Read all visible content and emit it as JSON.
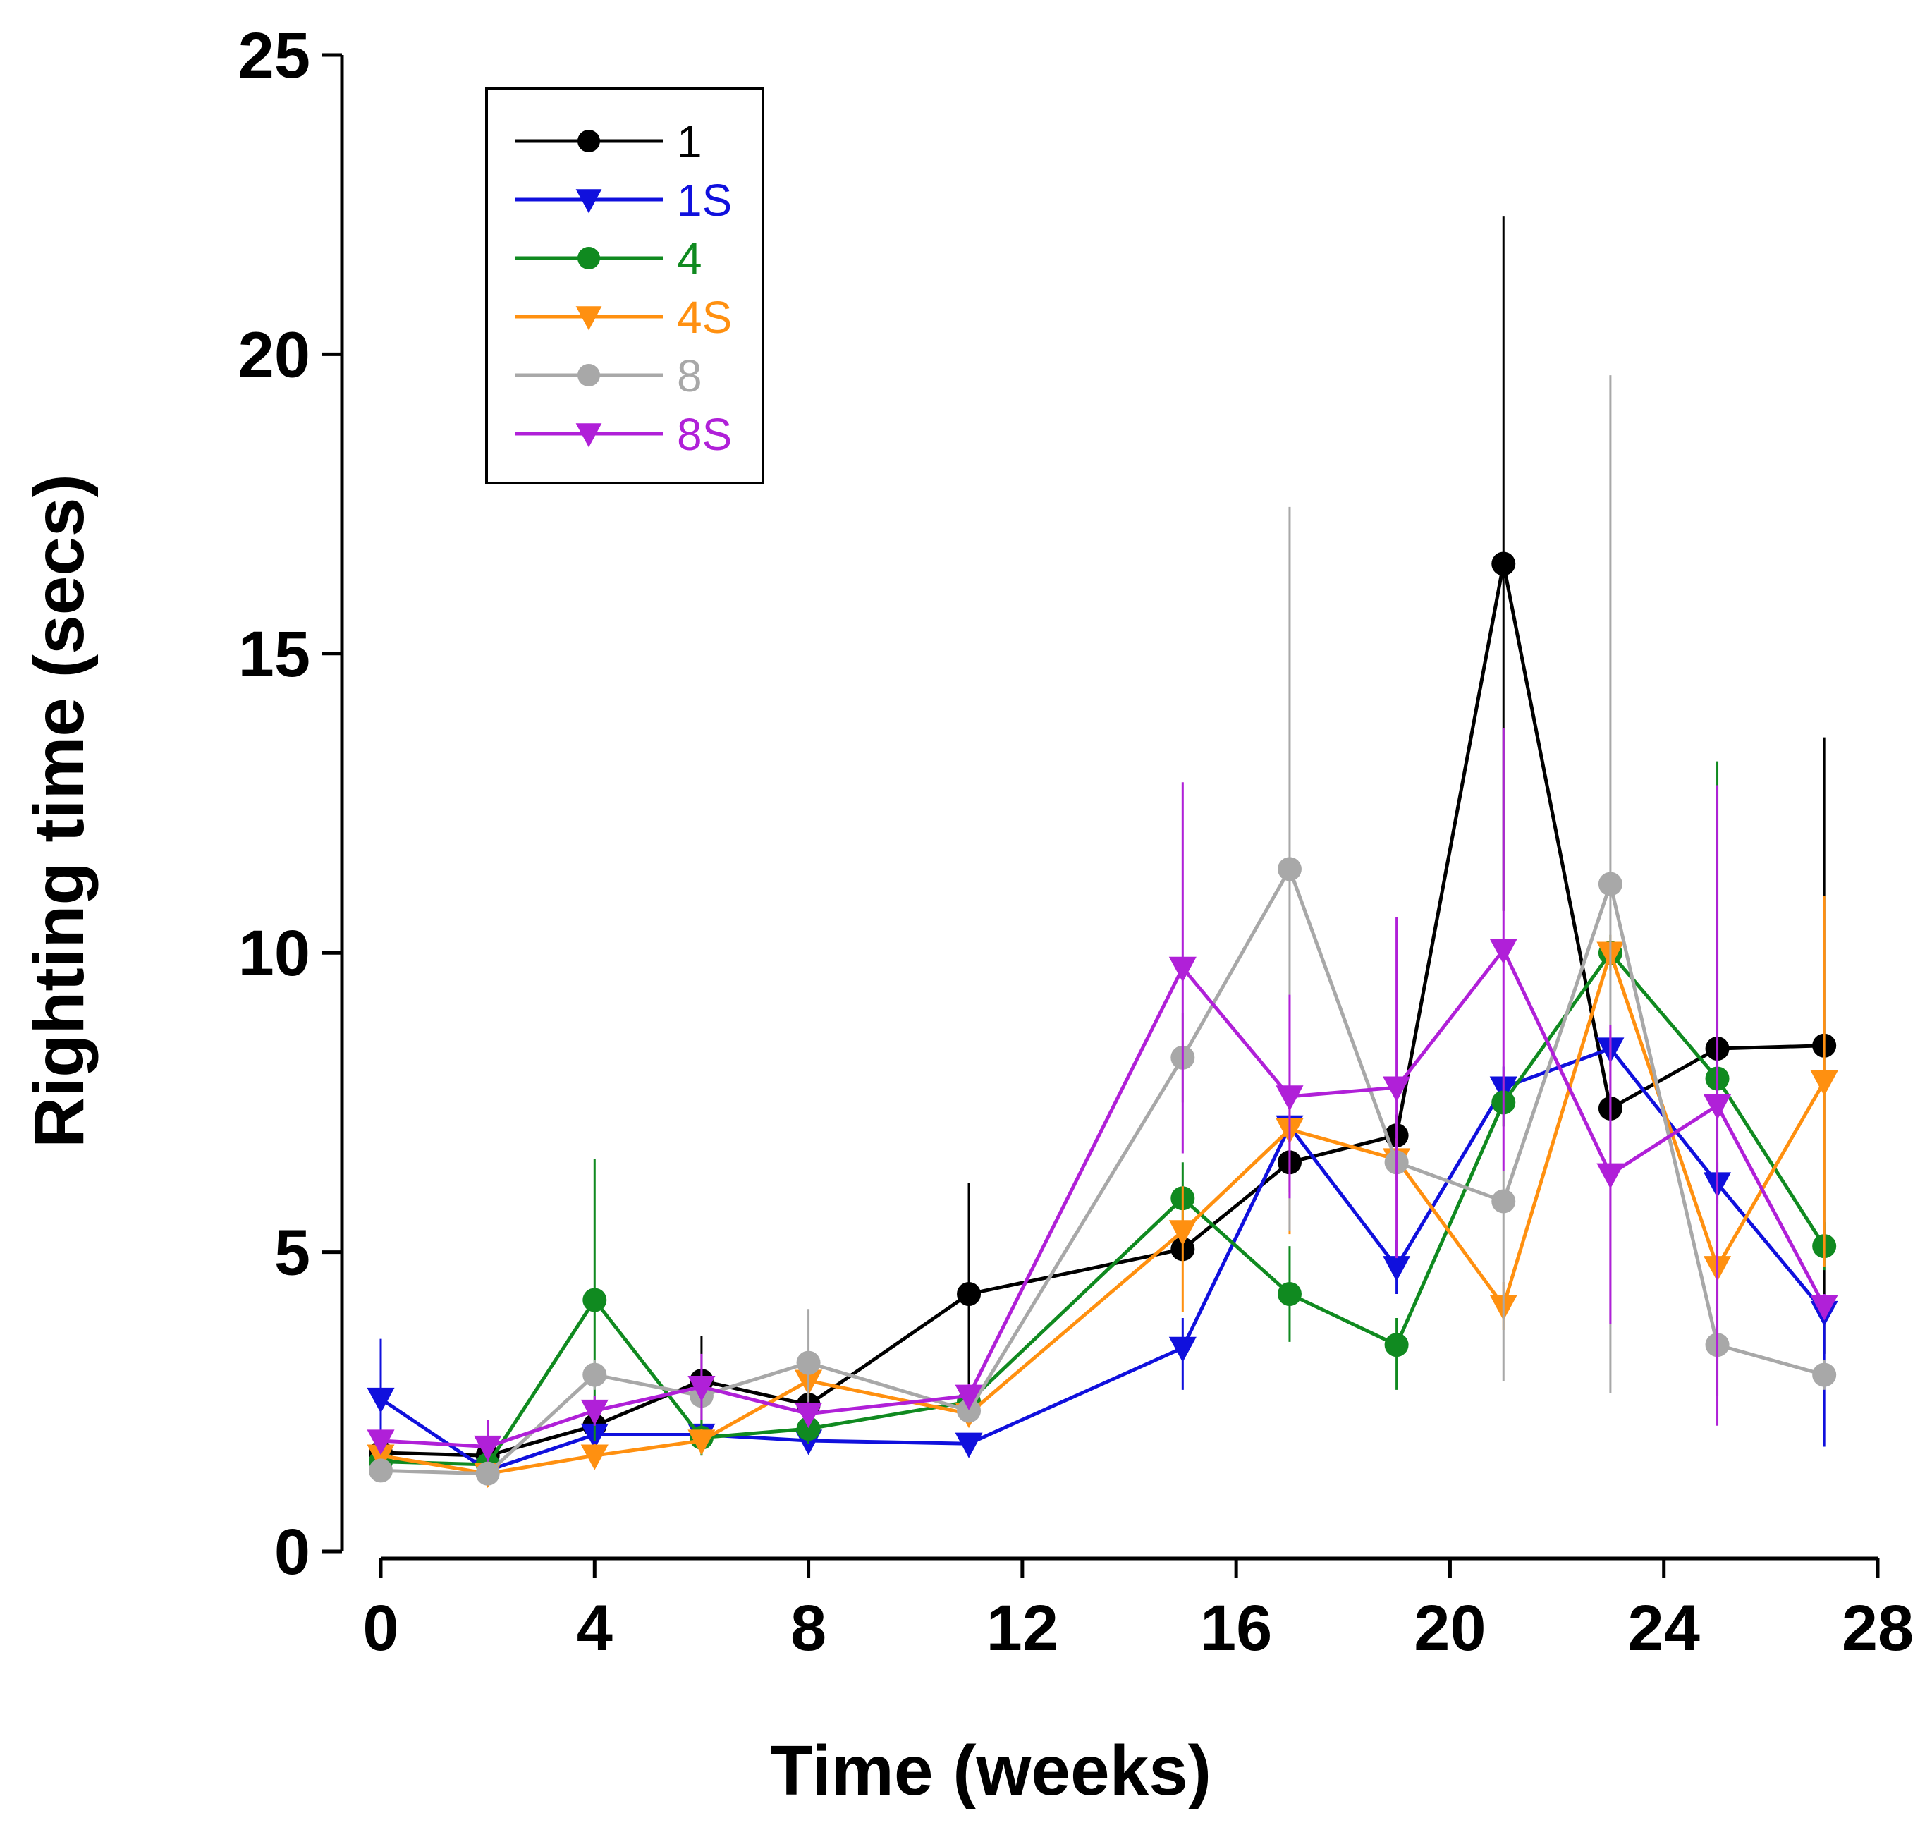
{
  "chart_data": {
    "type": "line",
    "title": "",
    "xlabel": "Time (weeks)",
    "ylabel": "Righting time (secs)",
    "xlim": [
      0,
      28
    ],
    "ylim": [
      0,
      25
    ],
    "xticks": [
      0,
      4,
      8,
      12,
      16,
      20,
      24,
      28
    ],
    "yticks": [
      0,
      5,
      10,
      15,
      20,
      25
    ],
    "xtick_labels": [
      "0",
      "4",
      "8",
      "12",
      "16",
      "20",
      "24",
      "28"
    ],
    "ytick_labels": [
      "0",
      "5",
      "10",
      "15",
      "20",
      "25"
    ],
    "grid": false,
    "legend_position": "top-left",
    "x": [
      0,
      2,
      4,
      6,
      8,
      11,
      15,
      17,
      19,
      21,
      23,
      25,
      27
    ],
    "series": [
      {
        "name": "1",
        "color": "#000000",
        "marker": "circle",
        "values": [
          1.65,
          1.6,
          2.1,
          2.85,
          2.45,
          4.3,
          5.05,
          6.5,
          6.95,
          16.5,
          7.4,
          8.4,
          8.45
        ],
        "err_upper": [
          1.9,
          1.8,
          2.3,
          3.6,
          2.8,
          6.15,
          5.2,
          7.0,
          7.3,
          22.3,
          7.6,
          8.6,
          13.6
        ],
        "err_lower": [
          1.5,
          1.4,
          1.9,
          2.0,
          2.2,
          2.5,
          4.9,
          6.0,
          6.6,
          10.7,
          7.2,
          8.2,
          3.3
        ]
      },
      {
        "name": "1S",
        "color": "#1010dd",
        "marker": "triangle-down",
        "values": [
          2.55,
          1.35,
          1.95,
          1.95,
          1.85,
          1.8,
          3.4,
          7.1,
          4.75,
          7.75,
          8.4,
          6.15,
          4.0
        ],
        "err_upper": [
          3.55,
          1.6,
          2.2,
          2.1,
          2.0,
          1.95,
          3.9,
          7.3,
          5.2,
          8.1,
          8.7,
          6.5,
          4.3
        ],
        "err_lower": [
          1.55,
          1.1,
          1.7,
          1.8,
          1.7,
          1.65,
          2.7,
          6.9,
          4.3,
          7.4,
          8.1,
          5.8,
          1.75
        ]
      },
      {
        "name": "4",
        "color": "#108a20",
        "marker": "circle",
        "values": [
          1.5,
          1.45,
          4.2,
          1.9,
          2.05,
          2.5,
          5.9,
          4.3,
          3.45,
          7.5,
          10.0,
          7.9,
          5.1
        ],
        "err_upper": [
          1.7,
          1.6,
          6.55,
          2.2,
          2.3,
          2.8,
          6.5,
          5.1,
          3.9,
          7.9,
          10.3,
          13.2,
          5.5
        ],
        "err_lower": [
          1.3,
          1.3,
          1.85,
          1.6,
          1.8,
          2.2,
          5.3,
          3.5,
          2.7,
          7.1,
          9.7,
          2.6,
          4.7
        ]
      },
      {
        "name": "4S",
        "color": "#ff9010",
        "marker": "triangle-down",
        "values": [
          1.6,
          1.3,
          1.6,
          1.85,
          2.85,
          2.3,
          5.35,
          7.05,
          6.55,
          4.1,
          10.0,
          4.75,
          7.85
        ],
        "err_upper": [
          1.8,
          1.45,
          1.8,
          2.05,
          3.1,
          2.5,
          6.1,
          7.4,
          6.9,
          4.5,
          10.3,
          5.3,
          10.95
        ],
        "err_lower": [
          1.4,
          1.15,
          1.4,
          1.65,
          2.6,
          2.1,
          4.0,
          5.3,
          6.2,
          3.7,
          9.7,
          4.2,
          4.75
        ]
      },
      {
        "name": "8",
        "color": "#a8a8a8",
        "marker": "circle",
        "values": [
          1.35,
          1.3,
          2.95,
          2.6,
          3.15,
          2.35,
          8.25,
          11.4,
          6.5,
          5.85,
          11.15,
          3.45,
          2.95
        ],
        "err_upper": [
          1.5,
          1.45,
          3.2,
          2.8,
          4.05,
          2.5,
          9.0,
          17.45,
          6.8,
          6.35,
          19.65,
          3.7,
          3.2
        ],
        "err_lower": [
          1.2,
          1.15,
          2.7,
          2.4,
          2.25,
          2.2,
          7.5,
          5.35,
          6.2,
          2.85,
          2.65,
          3.2,
          2.7
        ]
      },
      {
        "name": "8S",
        "color": "#b020d8",
        "marker": "triangle-down",
        "values": [
          1.85,
          1.75,
          2.35,
          2.75,
          2.3,
          2.6,
          9.75,
          7.6,
          7.75,
          10.05,
          6.3,
          7.45,
          4.1
        ],
        "err_upper": [
          2.0,
          2.2,
          2.6,
          3.3,
          2.5,
          2.8,
          12.85,
          9.3,
          10.6,
          13.75,
          8.8,
          12.8,
          4.3
        ],
        "err_lower": [
          1.7,
          1.5,
          2.1,
          2.2,
          2.1,
          2.4,
          6.65,
          5.9,
          4.9,
          6.35,
          3.8,
          2.1,
          3.9
        ]
      }
    ]
  }
}
